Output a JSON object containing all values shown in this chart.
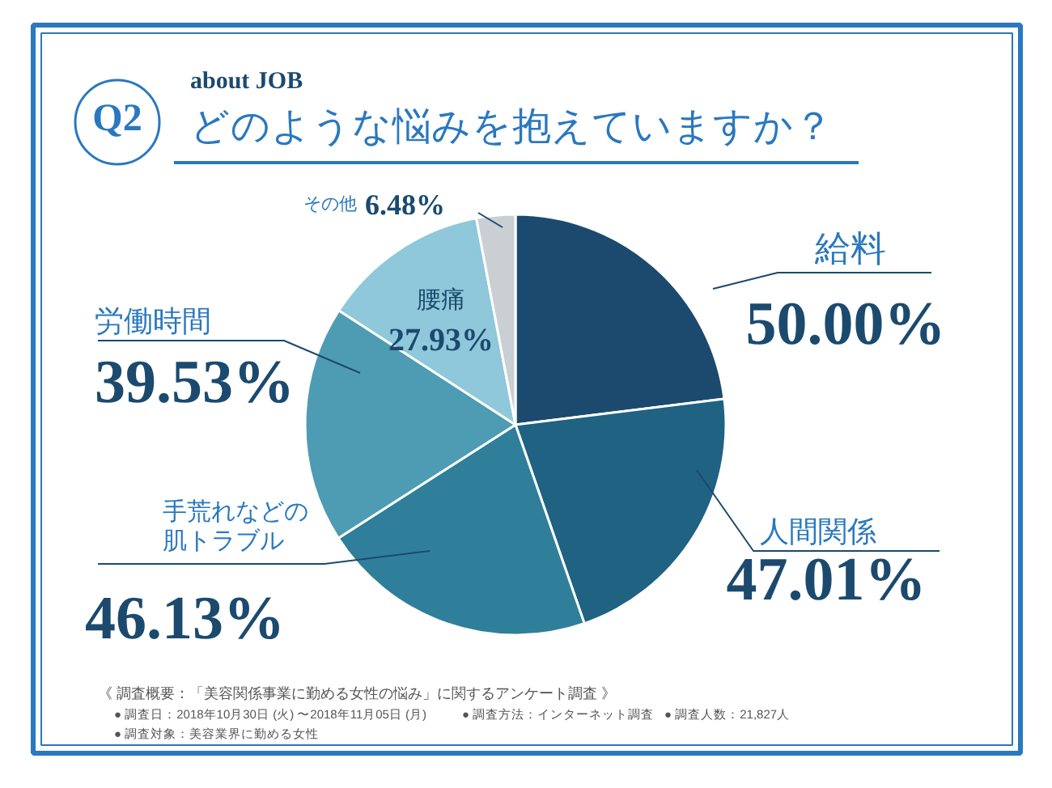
{
  "chart_data": {
    "type": "pie",
    "title": "どのような悩みを抱えていますか？",
    "subtitle": "about JOB",
    "categories": [
      "給料",
      "人間関係",
      "手荒れなどの肌トラブル",
      "労働時間",
      "腰痛",
      "その他"
    ],
    "values": [
      50.0,
      47.01,
      46.13,
      39.53,
      27.93,
      6.48
    ],
    "value_labels": [
      "50.00%",
      "47.01%",
      "46.13%",
      "39.53%",
      "27.93%",
      "6.48%"
    ],
    "colors": [
      "#1b4a6e",
      "#1f6282",
      "#2f7f9a",
      "#4e9cb3",
      "#8ec8da",
      "#c9cfd3"
    ],
    "annotations": [
      "Q2",
      "《 調査概要：「美容関係事業に勤める女性の悩み」に関するアンケート調査 》",
      "● 調査日：2018年10月30日 (火) 〜2018年11月05日 (月)",
      "● 調査方法：インターネット調査",
      "● 調査人数：21,827人",
      "● 調査対象：美容業界に勤める女性"
    ]
  }
}
